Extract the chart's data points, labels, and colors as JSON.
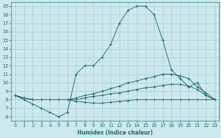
{
  "xlabel": "Humidex (Indice chaleur)",
  "x_ticks": [
    0,
    1,
    2,
    3,
    4,
    5,
    6,
    7,
    8,
    9,
    10,
    11,
    12,
    13,
    14,
    15,
    16,
    17,
    18,
    19,
    20,
    21,
    22,
    23
  ],
  "y_ticks": [
    6,
    7,
    8,
    9,
    10,
    11,
    12,
    13,
    14,
    15,
    16,
    17,
    18,
    19
  ],
  "xlim": [
    -0.5,
    23.5
  ],
  "ylim": [
    5.5,
    19.5
  ],
  "bg_color": "#cce8ee",
  "line_color": "#1a6e6a",
  "grid_color": "#aad0d8",
  "series": [
    {
      "x": [
        0,
        1,
        2,
        3,
        4,
        5,
        6,
        7,
        8,
        9,
        10,
        11,
        12,
        13,
        14,
        15,
        16,
        17,
        18,
        19,
        20,
        21,
        22,
        23
      ],
      "y": [
        8.5,
        8.0,
        7.5,
        7.0,
        6.5,
        6.0,
        6.5,
        11.0,
        12.0,
        12.0,
        13.0,
        14.5,
        17.0,
        18.5,
        19.0,
        19.0,
        18.0,
        15.0,
        11.5,
        10.5,
        9.5,
        10.0,
        8.5,
        8.0
      ]
    },
    {
      "x": [
        0,
        1,
        2,
        3,
        4,
        5,
        6,
        7,
        8,
        9,
        10,
        11,
        12,
        13,
        14,
        15,
        16,
        17,
        18,
        19,
        20,
        21,
        22,
        23
      ],
      "y": [
        8.5,
        8.2,
        8.0,
        8.0,
        8.0,
        8.0,
        8.0,
        8.2,
        8.5,
        8.7,
        9.0,
        9.3,
        9.6,
        10.0,
        10.2,
        10.5,
        10.7,
        11.0,
        11.0,
        10.8,
        10.5,
        9.5,
        8.8,
        8.0
      ]
    },
    {
      "x": [
        0,
        1,
        2,
        3,
        4,
        5,
        6,
        7,
        8,
        9,
        10,
        11,
        12,
        13,
        14,
        15,
        16,
        17,
        18,
        19,
        20,
        21,
        22,
        23
      ],
      "y": [
        8.5,
        8.2,
        8.0,
        8.0,
        8.0,
        8.0,
        8.0,
        8.0,
        8.2,
        8.4,
        8.5,
        8.7,
        8.8,
        9.0,
        9.2,
        9.4,
        9.5,
        9.7,
        9.8,
        9.8,
        9.6,
        9.2,
        8.5,
        8.0
      ]
    },
    {
      "x": [
        0,
        1,
        2,
        3,
        4,
        5,
        6,
        7,
        8,
        9,
        10,
        11,
        12,
        13,
        14,
        15,
        16,
        17,
        18,
        19,
        20,
        21,
        22,
        23
      ],
      "y": [
        8.5,
        8.2,
        8.0,
        8.0,
        8.0,
        8.0,
        8.0,
        7.8,
        7.7,
        7.6,
        7.6,
        7.7,
        7.8,
        7.9,
        8.0,
        8.0,
        8.0,
        8.0,
        8.0,
        8.0,
        8.0,
        8.0,
        8.0,
        8.0
      ]
    }
  ]
}
